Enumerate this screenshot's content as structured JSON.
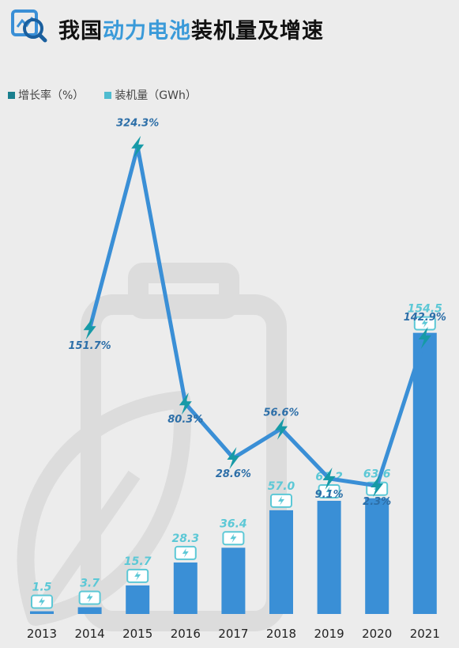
{
  "header": {
    "title_plain": "我国",
    "title_accent": "动力电池",
    "title_rest": "装机量及增速"
  },
  "colors": {
    "bar": "#3a8fd6",
    "line": "#3a8fd6",
    "marker": "#169aa7",
    "bar_label": "#5cc8d6",
    "growth_label": "#2d6fa8",
    "legend_growth": "#1a7f8e",
    "legend_install": "#4fbcd0"
  },
  "chart_data": {
    "type": "bar+line",
    "categories": [
      "2013",
      "2014",
      "2015",
      "2016",
      "2017",
      "2018",
      "2019",
      "2020",
      "2021"
    ],
    "series": [
      {
        "name": "装机量（GWh）",
        "type": "bar",
        "values": [
          1.5,
          3.7,
          15.7,
          28.3,
          36.4,
          57.0,
          62.2,
          63.6,
          154.5
        ],
        "labels": [
          "1.5",
          "3.7",
          "15.7",
          "28.3",
          "36.4",
          "57.0",
          "62.2",
          "63.6",
          "154.5"
        ]
      },
      {
        "name": "增长率（%）",
        "type": "line",
        "values": [
          null,
          151.7,
          324.3,
          80.3,
          28.6,
          56.6,
          9.1,
          2.3,
          142.9
        ],
        "labels": [
          "",
          "151.7%",
          "324.3%",
          "80.3%",
          "28.6%",
          "56.6%",
          "9.1%",
          "2.3%",
          "142.9%"
        ]
      }
    ],
    "legend": [
      "增长率（%）",
      "装机量（GWh）"
    ],
    "legend_position": "top-left",
    "grid": false
  }
}
